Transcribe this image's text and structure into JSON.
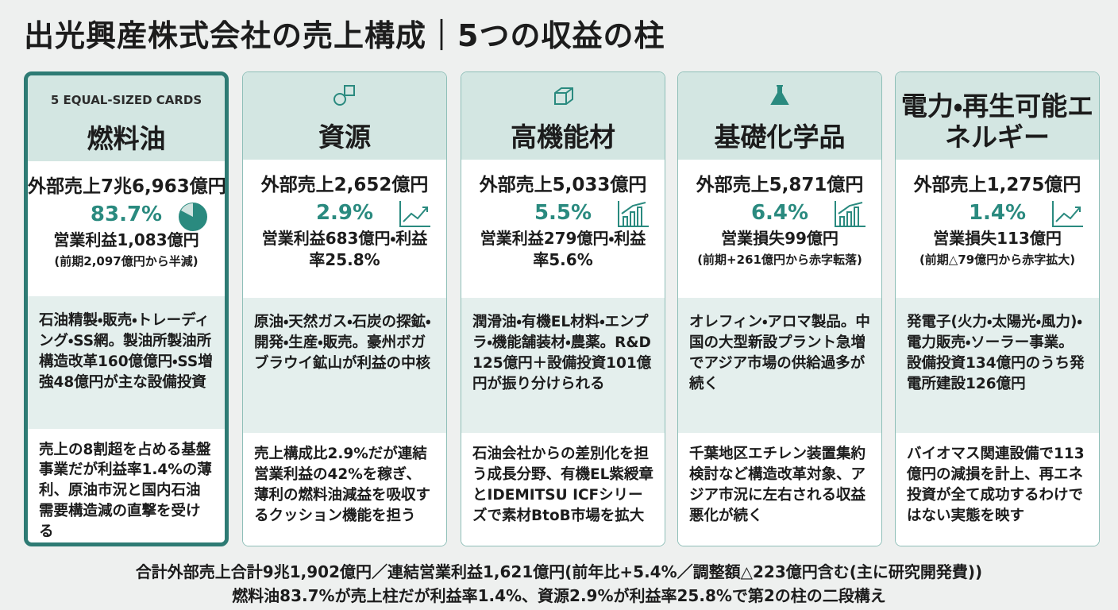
{
  "header": {
    "title": "出光興産株式会社の売上構成｜5つの収益の柱"
  },
  "cards": [
    {
      "tag": "5 EQUAL-SIZED CARDS",
      "name": "燃料油",
      "sales": "外部売上7兆6,963億円",
      "share": "83.7%",
      "profit": "営業利益1,083億円",
      "note": "(前期2,097億円から半減)",
      "description": "石油精製・販売・トレーディング・SS網。製油所製油所構造改革160億億円・SS増強48億円が主な設備投資",
      "insight": "売上の8割超を占める基盤事業だが利益率1.4%の薄利、原油市況と国内石油需要構造減の直撃を受ける"
    },
    {
      "name": "資源",
      "sales": "外部売上2,652億円",
      "share": "2.9%",
      "profit": "営業利益683億円・利益率25.8%",
      "description": "原油・天然ガス・石炭の探鉱・開発・生産・販売。豪州ボガブラウイ鉱山が利益の中核",
      "insight": "売上構成比2.9%だが連結営業利益の42%を稼ぎ、薄利の燃料油減益を吸収するクッション機能を担う"
    },
    {
      "name": "高機能材",
      "sales": "外部売上5,033億円",
      "share": "5.5%",
      "profit": "営業利益279億円・利益率5.6%",
      "description": "潤滑油・有機EL材料・エンプラ・機能舗装材・農薬。R&D 125億円＋設備投資101億円が振り分けられる",
      "insight": "石油会社からの差別化を担う成長分野、有機EL紫綬章とIDEMITSU ICFシリーズで素材BtoB市場を拡大"
    },
    {
      "name": "基礎化学品",
      "sales": "外部売上5,871億円",
      "share": "6.4%",
      "profit": "営業損失99億円",
      "note": "(前期+261億円から赤字転落)",
      "description": "オレフィン・アロマ製品。中国の大型新設プラント急増でアジア市場の供給過多が続く",
      "insight": "千葉地区エチレン装置集約検討など構造改革対象、アジア市況に左右される収益悪化が続く"
    },
    {
      "name": "電力・再生可能エネルギー",
      "sales": "外部売上1,275億円",
      "share": "1.4%",
      "profit": "営業損失113億円",
      "note": "(前期△79億円から赤字拡大)",
      "description": "発電子(火力・太陽光・風力)・電力販売・ソーラー事業。設備投資134億円のうち発電所建設126億円",
      "insight": "バイオマス関連設備で113億円の減損を計上、再エネ投資が全て成功するわけではない実態を映す"
    }
  ],
  "footer": {
    "lines": [
      "合計外部売上合計9兆1,902億円／連結営業利益1,621億円(前年比+5.4%／調整額△223億円含む(主に研究開発費))",
      "燃料油83.7%が売上柱だが利益率1.4%、資源2.9%が利益率25.8%で第2の柱の二段構え"
    ]
  }
}
